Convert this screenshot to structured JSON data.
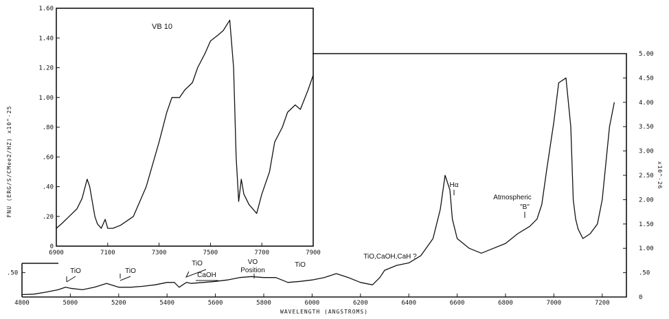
{
  "chart_data": [
    {
      "name": "main",
      "type": "line",
      "title": "",
      "xlabel": "WAVELENGTH (ANGSTROMS)",
      "ylabel": "",
      "xlim": [
        4800,
        7300
      ],
      "ylim": [
        0,
        5.0
      ],
      "x_ticks": [
        "4800",
        "5000",
        "5200",
        "5400",
        "5600",
        "5800",
        "6000",
        "6200",
        "6400",
        "6600",
        "6800",
        "7000",
        "7200"
      ],
      "y_ticks_left": [
        ".50"
      ],
      "y_ticks_right": [
        "0",
        ".50",
        "1.00",
        "1.50",
        "2.00",
        "2.50",
        "3.00",
        "3.50",
        "4.00",
        "4.50",
        "5.00"
      ],
      "y_right_unit": "x10^-26",
      "series": [
        {
          "x": [
            4800,
            4850,
            4900,
            4950,
            4980,
            5000,
            5050,
            5100,
            5150,
            5200,
            5250,
            5300,
            5350,
            5400,
            5430,
            5450,
            5480,
            5500,
            5550,
            5600,
            5650,
            5700,
            5750,
            5800,
            5850,
            5900,
            5950,
            6000,
            6050,
            6100,
            6150,
            6200,
            6250,
            6280,
            6300,
            6350,
            6400,
            6450,
            6500,
            6530,
            6550,
            6570,
            6580,
            6600,
            6650,
            6700,
            6750,
            6800,
            6850,
            6900,
            6930,
            6950,
            6970,
            7000,
            7020,
            7050,
            7070,
            7080,
            7090,
            7100,
            7120,
            7150,
            7180,
            7200,
            7230,
            7250
          ],
          "y": [
            0.05,
            0.06,
            0.1,
            0.15,
            0.2,
            0.18,
            0.15,
            0.2,
            0.28,
            0.2,
            0.2,
            0.22,
            0.25,
            0.3,
            0.3,
            0.2,
            0.3,
            0.28,
            0.3,
            0.32,
            0.35,
            0.4,
            0.42,
            0.4,
            0.4,
            0.3,
            0.32,
            0.35,
            0.4,
            0.48,
            0.4,
            0.3,
            0.25,
            0.4,
            0.55,
            0.65,
            0.7,
            0.85,
            1.2,
            1.8,
            2.5,
            2.2,
            1.6,
            1.2,
            1.0,
            0.9,
            1.0,
            1.1,
            1.3,
            1.45,
            1.6,
            1.9,
            2.6,
            3.6,
            4.4,
            4.5,
            3.5,
            2.0,
            1.6,
            1.4,
            1.2,
            1.3,
            1.5,
            2.0,
            3.5,
            4.0
          ]
        }
      ],
      "annotations": [
        "TiO",
        "TiO",
        "TiO",
        "CaOH",
        "VO",
        "Position",
        "TiO",
        "TiO,CaOH,CaH ?",
        "Hα",
        "Atmospheric",
        "\"B\""
      ]
    },
    {
      "name": "inset",
      "type": "line",
      "title": "VB 10",
      "xlabel": "",
      "ylabel": "FNU (ERG/S/CMee2/HZ) x10^-25",
      "xlim": [
        6900,
        7900
      ],
      "ylim": [
        0,
        1.6
      ],
      "x_ticks": [
        "6900",
        "7100",
        "7300",
        "7500",
        "7700",
        "7900"
      ],
      "y_ticks": [
        "0",
        ".20",
        ".40",
        ".60",
        ".80",
        "1.00",
        "1.20",
        "1.40",
        "1.60"
      ],
      "series": [
        {
          "x": [
            6900,
            6920,
            6950,
            6980,
            7000,
            7020,
            7030,
            7050,
            7060,
            7075,
            7090,
            7100,
            7120,
            7150,
            7200,
            7250,
            7300,
            7330,
            7350,
            7380,
            7400,
            7430,
            7450,
            7480,
            7500,
            7530,
            7550,
            7575,
            7590,
            7600,
            7610,
            7620,
            7630,
            7650,
            7680,
            7700,
            7730,
            7750,
            7780,
            7800,
            7830,
            7850,
            7880,
            7900
          ],
          "y": [
            0.12,
            0.15,
            0.2,
            0.25,
            0.32,
            0.45,
            0.4,
            0.2,
            0.15,
            0.12,
            0.18,
            0.12,
            0.12,
            0.14,
            0.2,
            0.4,
            0.7,
            0.9,
            1.0,
            1.0,
            1.05,
            1.1,
            1.2,
            1.3,
            1.38,
            1.42,
            1.45,
            1.52,
            1.2,
            0.6,
            0.3,
            0.45,
            0.35,
            0.28,
            0.22,
            0.35,
            0.5,
            0.7,
            0.8,
            0.9,
            0.95,
            0.92,
            1.05,
            1.15
          ]
        }
      ]
    }
  ]
}
